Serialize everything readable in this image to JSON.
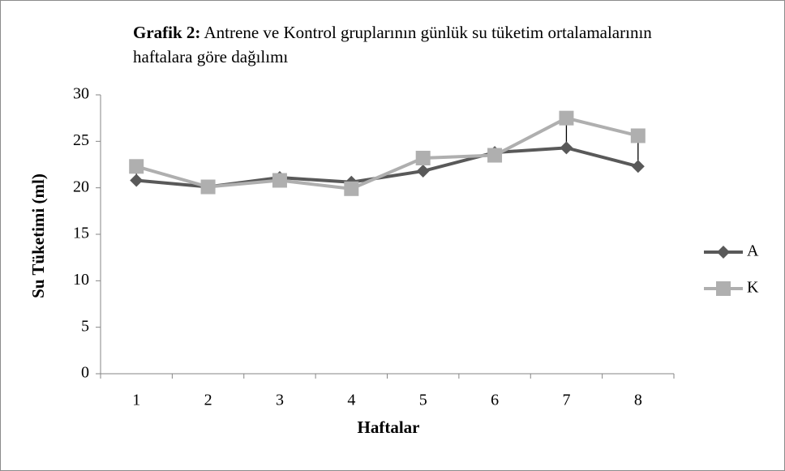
{
  "chart_data": {
    "type": "line",
    "title_bold": "Grafik 2:",
    "title": "Antrene ve Kontrol gruplarının  günlük su tüketim ortalamalarının haftalara göre dağılımı",
    "xlabel": "Haftalar",
    "ylabel": "Su Tüketimi (ml)",
    "categories": [
      "1",
      "2",
      "3",
      "4",
      "5",
      "6",
      "7",
      "8"
    ],
    "series": [
      {
        "name": "A",
        "color": "#595959",
        "marker": "diamond",
        "values": [
          20.8,
          20.1,
          21.1,
          20.6,
          21.8,
          23.8,
          24.3,
          22.3
        ]
      },
      {
        "name": "K",
        "color": "#afafaf",
        "marker": "square",
        "values": [
          22.3,
          20.1,
          20.8,
          19.9,
          23.2,
          23.5,
          27.5,
          25.6
        ]
      }
    ],
    "ylim": [
      0,
      30
    ],
    "yticks": [
      0,
      5,
      10,
      15,
      20,
      25,
      30
    ],
    "high_low_lines": true,
    "legend": "right"
  }
}
